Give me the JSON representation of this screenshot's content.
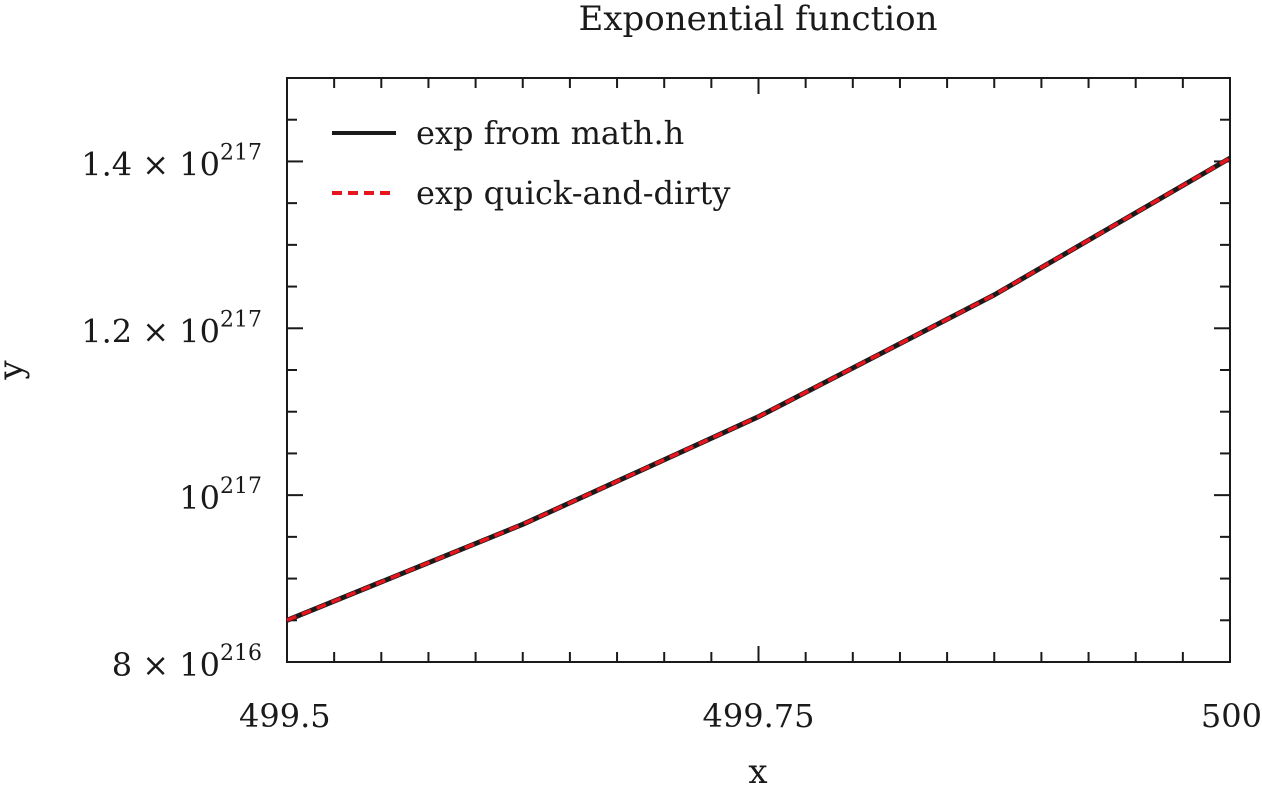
{
  "chart_data": {
    "type": "line",
    "title": "Exponential function",
    "xlabel": "x",
    "ylabel": "y",
    "xlim": [
      499.5,
      500
    ],
    "ylim": [
      8e+216,
      1.5e+217
    ],
    "grid": false,
    "legend_position": "top-left",
    "x_ticks": [
      {
        "value": 499.5,
        "label": "499.5"
      },
      {
        "value": 499.75,
        "label": "499.75"
      },
      {
        "value": 500,
        "label": "500"
      }
    ],
    "y_ticks": [
      {
        "value": 8e+216,
        "mantissa": "8 × 10",
        "exponent": "216"
      },
      {
        "value": 1e+217,
        "mantissa": "10",
        "exponent": "217"
      },
      {
        "value": 1.2e+217,
        "mantissa": "1.2 × 10",
        "exponent": "217"
      },
      {
        "value": 1.4e+217,
        "mantissa": "1.4 × 10",
        "exponent": "217"
      }
    ],
    "series": [
      {
        "name": "exp from math.h",
        "color": "#1a1a1a",
        "dash": "solid",
        "x": [
          499.5,
          499.625,
          499.75,
          499.875,
          500
        ],
        "y": [
          8.5e+216,
          9.65e+216,
          1.094e+217,
          1.24e+217,
          1.404e+217
        ]
      },
      {
        "name": "exp quick-and-dirty",
        "color": "#e8141e",
        "dash": "dashed",
        "x": [
          499.5,
          499.625,
          499.75,
          499.875,
          500
        ],
        "y": [
          8.5e+216,
          9.65e+216,
          1.094e+217,
          1.24e+217,
          1.404e+217
        ]
      }
    ]
  }
}
